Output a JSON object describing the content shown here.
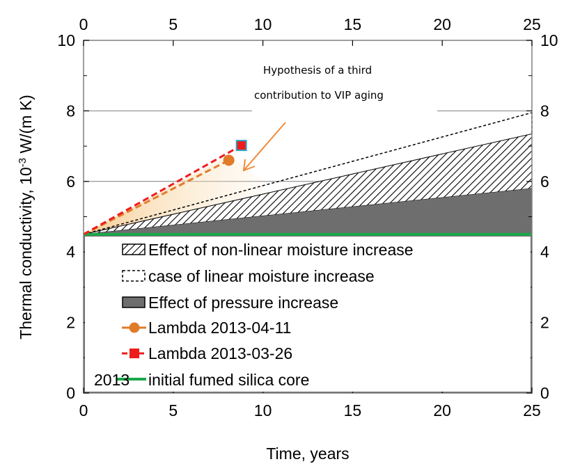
{
  "chart_data": {
    "type": "area",
    "xlabel": "Time, years",
    "ylabel_main": "Thermal conductivity,  10",
    "ylabel_exp": "-3",
    "ylabel_unit": " W/(m K)",
    "xlim": [
      0,
      25
    ],
    "ylim": [
      0,
      10
    ],
    "x_ticks": [
      "0",
      "5",
      "10",
      "15",
      "20",
      "25"
    ],
    "y_ticks": [
      "0",
      "2",
      "4",
      "6",
      "8",
      "10"
    ],
    "x_tick_values": [
      0,
      5,
      10,
      15,
      20,
      25
    ],
    "y_tick_values": [
      0,
      2,
      4,
      6,
      8,
      10
    ],
    "secondary_axes": true,
    "series": [
      {
        "name": "Effect of non-linear moisture increase",
        "style": "hatched",
        "x": [
          0,
          25
        ],
        "y_lower": [
          4.5,
          5.8
        ],
        "y_upper": [
          4.5,
          7.35
        ]
      },
      {
        "name": "case of linear moisture increase",
        "style": "dashed-outline",
        "x": [
          0,
          25
        ],
        "y": [
          4.5,
          7.95
        ]
      },
      {
        "name": "Effect of pressure increase",
        "style": "gray-fill",
        "x": [
          0,
          25
        ],
        "y": [
          4.5,
          5.8
        ]
      },
      {
        "name": "Lambda 2013-04-11",
        "style": "line-marker",
        "color": "#e07b2a",
        "marker": "circle",
        "x": [
          0,
          8.1
        ],
        "y": [
          4.5,
          6.6
        ]
      },
      {
        "name": "Lambda 2013-03-26",
        "style": "line-marker",
        "color": "#ee1c1c",
        "marker": "square",
        "x": [
          0,
          8.8
        ],
        "y": [
          4.5,
          7.02
        ]
      },
      {
        "name": "initial fumed silica core",
        "style": "solid-line",
        "color": "#1aa84a",
        "x": [
          0,
          25
        ],
        "y": [
          4.5,
          4.5
        ]
      }
    ],
    "legend": {
      "placement": "lower-center",
      "items": [
        "Effect of non-linear moisture increase",
        "case of linear moisture increase",
        "Effect of pressure increase",
        "Lambda 2013-04-11",
        "Lambda 2013-03-26",
        "initial fumed silica core"
      ],
      "overlay_text": "2013"
    },
    "annotation": {
      "line1": "Hypothesis of a third",
      "line2": "contribution to VIP aging",
      "color": "#f08a3a"
    },
    "grid_lines_y": [
      6,
      8
    ],
    "colors": {
      "pressure_fill": "#6e6e6e",
      "orange": "#e07b2a",
      "red": "#ee1c1c",
      "green": "#1aa84a",
      "hypothesis_fill": "#f9d9a6"
    }
  }
}
